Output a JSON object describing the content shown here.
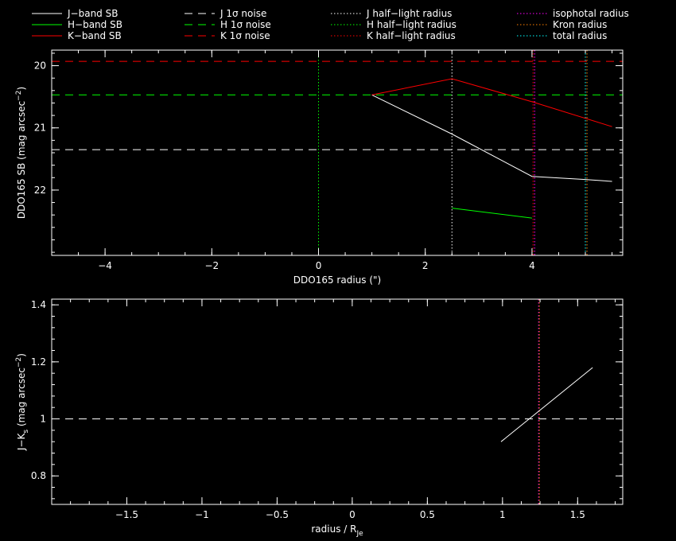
{
  "legend": [
    {
      "label": "J−band SB",
      "color": "#ffffff",
      "style": "solid"
    },
    {
      "label": "H−band SB",
      "color": "#00ff00",
      "style": "solid"
    },
    {
      "label": "K−band SB",
      "color": "#ff0000",
      "style": "solid"
    },
    {
      "label": "J 1σ noise",
      "color": "#ffffff",
      "style": "dashed"
    },
    {
      "label": "H 1σ noise",
      "color": "#00ff00",
      "style": "dashed"
    },
    {
      "label": "K 1σ noise",
      "color": "#ff0000",
      "style": "dashed"
    },
    {
      "label": "J half−light radius",
      "color": "#ffffff",
      "style": "dotted"
    },
    {
      "label": "H half−light radius",
      "color": "#00ff00",
      "style": "dotted"
    },
    {
      "label": "K half−light radius",
      "color": "#ff0000",
      "style": "dotted"
    },
    {
      "label": "isophotal radius",
      "color": "#ff00ff",
      "style": "dotted"
    },
    {
      "label": "Kron radius",
      "color": "#ff8000",
      "style": "dotted"
    },
    {
      "label": "total radius",
      "color": "#00ffff",
      "style": "dotted"
    }
  ],
  "chart_data": [
    {
      "type": "line",
      "xlabel": "DDO165 radius (\")",
      "ylabel": "DDO165 SB (mag arcsec",
      "ylabel_sup": "−2",
      "ylabel_end": ")",
      "xlim": [
        -5,
        5.7
      ],
      "ylim": [
        23.05,
        19.75
      ],
      "y_inverted": true,
      "xticks": [
        -4,
        -2,
        0,
        2,
        4
      ],
      "xtick_labels": [
        "−4",
        "−2",
        "0",
        "2",
        "4"
      ],
      "yticks": [
        20,
        21,
        22
      ],
      "ytick_labels": [
        "20",
        "21",
        "22"
      ],
      "series": [
        {
          "name": "J−band SB",
          "color": "#ffffff",
          "x": [
            1.0,
            2.5,
            4.0,
            5.0,
            5.5
          ],
          "y": [
            20.47,
            21.1,
            21.78,
            21.83,
            21.86
          ]
        },
        {
          "name": "H−band SB",
          "color": "#00ff00",
          "x": [
            2.5,
            4.0
          ],
          "y": [
            22.29,
            22.45
          ]
        },
        {
          "name": "K−band SB",
          "color": "#ff0000",
          "x": [
            1.0,
            2.5,
            4.0,
            5.5
          ],
          "y": [
            20.47,
            20.21,
            20.58,
            20.98
          ]
        }
      ],
      "hlines": [
        {
          "y": 19.93,
          "color": "#ff0000",
          "style": "dashed"
        },
        {
          "y": 20.47,
          "color": "#00ff00",
          "style": "dashed"
        },
        {
          "y": 21.35,
          "color": "#ffffff",
          "style": "dashed"
        }
      ],
      "vlines": [
        {
          "x": 0.0,
          "color": "#00ff00",
          "style": "dotted"
        },
        {
          "x": 2.5,
          "color": "#ffffff",
          "style": "dotted"
        },
        {
          "x": 4.02,
          "color": "#ff0000",
          "style": "dotted"
        },
        {
          "x": 4.05,
          "color": "#ff00ff",
          "style": "dotted"
        },
        {
          "x": 5.0,
          "color": "#00ffff",
          "style": "dotted"
        },
        {
          "x": 5.03,
          "color": "#ff8000",
          "style": "dotted"
        }
      ]
    },
    {
      "type": "line",
      "xlabel": "radius / R",
      "xlabel_sub": "Je",
      "ylabel": "J−K",
      "ylabel_sub": "s",
      "ylabel_rest": " (mag arcsec",
      "ylabel_sup": "−2",
      "ylabel_end": ")",
      "xlim": [
        -2.0,
        1.8
      ],
      "ylim": [
        0.7,
        1.42
      ],
      "xticks": [
        -1.5,
        -1,
        -0.5,
        0,
        0.5,
        1,
        1.5
      ],
      "xtick_labels": [
        "−1.5",
        "−1",
        "−0.5",
        "0",
        "0.5",
        "1",
        "1.5"
      ],
      "yticks": [
        0.8,
        1,
        1.2,
        1.4
      ],
      "ytick_labels": [
        "0.8",
        "1",
        "1.2",
        "1.4"
      ],
      "series": [
        {
          "color": "#ffffff",
          "x": [
            0.99,
            1.6
          ],
          "y": [
            0.92,
            1.18
          ]
        }
      ],
      "hlines": [
        {
          "y": 1.0,
          "color": "#ffffff",
          "style": "dashed"
        }
      ],
      "vlines": [
        {
          "x": 1.24,
          "color": "#ff00ff",
          "style": "dotted"
        },
        {
          "x": 1.245,
          "color": "#ff8000",
          "style": "dotted"
        }
      ]
    }
  ]
}
